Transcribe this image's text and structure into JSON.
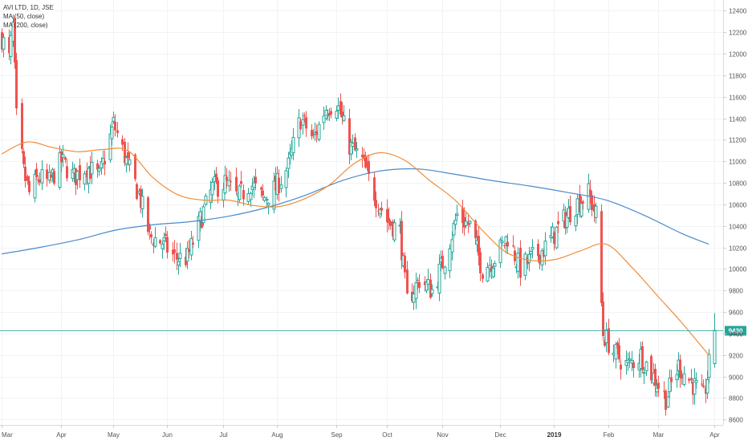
{
  "legend": {
    "title": "AVI LTD, 1D, JSE",
    "ma50": "MA (50, close)",
    "ma200": "MA (200, close)"
  },
  "chart_data": {
    "type": "candlestick",
    "title": "AVI LTD, 1D, JSE",
    "ylim": [
      8550,
      12500
    ],
    "yticks": [
      8600,
      8800,
      9000,
      9200,
      9400,
      9600,
      9800,
      10000,
      10200,
      10400,
      10600,
      10800,
      11000,
      11200,
      11400,
      11600,
      11800,
      12000,
      12200,
      12400
    ],
    "xticks": [
      {
        "label": "Mar",
        "date": "2018-03-01"
      },
      {
        "label": "Apr",
        "date": "2018-04-03"
      },
      {
        "label": "May",
        "date": "2018-05-02"
      },
      {
        "label": "Jun",
        "date": "2018-06-01"
      },
      {
        "label": "Jul",
        "date": "2018-07-02"
      },
      {
        "label": "Aug",
        "date": "2018-08-01"
      },
      {
        "label": "Sep",
        "date": "2018-09-03"
      },
      {
        "label": "Oct",
        "date": "2018-10-01"
      },
      {
        "label": "Nov",
        "date": "2018-11-01"
      },
      {
        "label": "Dec",
        "date": "2018-12-03"
      },
      {
        "label": "2019",
        "date": "2019-01-02",
        "bold": true
      },
      {
        "label": "Feb",
        "date": "2019-02-01"
      },
      {
        "label": "Mar",
        "date": "2019-03-01"
      },
      {
        "label": "Apr",
        "date": "2019-04-01"
      }
    ],
    "current_price": 9430,
    "current_price_label": "9430",
    "colors": {
      "up": "#26a69a",
      "down": "#ef5350",
      "ma50": "#f28c38",
      "ma200": "#4a8ac9",
      "grid": "#f0f3f7",
      "price_tag": "#26a69a"
    },
    "ma50": [
      [
        "2018-03-01",
        11070
      ],
      [
        "2018-03-15",
        11180
      ],
      [
        "2018-03-29",
        11130
      ],
      [
        "2018-04-12",
        11090
      ],
      [
        "2018-04-26",
        11110
      ],
      [
        "2018-05-10",
        11100
      ],
      [
        "2018-05-24",
        10850
      ],
      [
        "2018-06-07",
        10690
      ],
      [
        "2018-06-21",
        10640
      ],
      [
        "2018-07-05",
        10640
      ],
      [
        "2018-07-19",
        10590
      ],
      [
        "2018-08-02",
        10580
      ],
      [
        "2018-08-16",
        10650
      ],
      [
        "2018-08-30",
        10780
      ],
      [
        "2018-09-13",
        10980
      ],
      [
        "2018-09-27",
        11080
      ],
      [
        "2018-10-11",
        11010
      ],
      [
        "2018-10-25",
        10820
      ],
      [
        "2018-11-08",
        10640
      ],
      [
        "2018-11-22",
        10380
      ],
      [
        "2018-12-06",
        10160
      ],
      [
        "2018-12-20",
        10080
      ],
      [
        "2019-01-03",
        10090
      ],
      [
        "2019-01-17",
        10170
      ],
      [
        "2019-01-31",
        10230
      ],
      [
        "2019-02-14",
        10020
      ],
      [
        "2019-02-28",
        9760
      ],
      [
        "2019-03-14",
        9500
      ],
      [
        "2019-03-29",
        9200
      ]
    ],
    "ma200": [
      [
        "2018-03-01",
        10140
      ],
      [
        "2018-03-22",
        10200
      ],
      [
        "2018-04-12",
        10270
      ],
      [
        "2018-05-03",
        10360
      ],
      [
        "2018-05-24",
        10410
      ],
      [
        "2018-06-14",
        10440
      ],
      [
        "2018-07-05",
        10490
      ],
      [
        "2018-07-26",
        10570
      ],
      [
        "2018-08-16",
        10680
      ],
      [
        "2018-09-06",
        10820
      ],
      [
        "2018-09-27",
        10910
      ],
      [
        "2018-10-18",
        10930
      ],
      [
        "2018-11-08",
        10880
      ],
      [
        "2018-11-29",
        10820
      ],
      [
        "2018-12-20",
        10770
      ],
      [
        "2019-01-10",
        10710
      ],
      [
        "2019-01-31",
        10640
      ],
      [
        "2019-02-21",
        10500
      ],
      [
        "2019-03-14",
        10330
      ],
      [
        "2019-03-29",
        10230
      ]
    ],
    "price_path": [
      [
        "2018-03-01",
        12150
      ],
      [
        "2018-03-05",
        11950
      ],
      [
        "2018-03-07",
        12250
      ],
      [
        "2018-03-09",
        11400
      ],
      [
        "2018-03-13",
        10900
      ],
      [
        "2018-03-16",
        10700
      ],
      [
        "2018-03-21",
        10850
      ],
      [
        "2018-03-27",
        10800
      ],
      [
        "2018-04-03",
        11000
      ],
      [
        "2018-04-10",
        10850
      ],
      [
        "2018-04-17",
        10950
      ],
      [
        "2018-04-24",
        10850
      ],
      [
        "2018-05-02",
        11350
      ],
      [
        "2018-05-09",
        11000
      ],
      [
        "2018-05-16",
        10700
      ],
      [
        "2018-05-22",
        10300
      ],
      [
        "2018-05-29",
        10250
      ],
      [
        "2018-06-05",
        10100
      ],
      [
        "2018-06-12",
        10100
      ],
      [
        "2018-06-19",
        10450
      ],
      [
        "2018-06-26",
        10750
      ],
      [
        "2018-07-03",
        10800
      ],
      [
        "2018-07-10",
        10650
      ],
      [
        "2018-07-17",
        10800
      ],
      [
        "2018-07-24",
        10650
      ],
      [
        "2018-07-31",
        10750
      ],
      [
        "2018-08-07",
        10950
      ],
      [
        "2018-08-14",
        11400
      ],
      [
        "2018-08-21",
        11200
      ],
      [
        "2018-08-28",
        11500
      ],
      [
        "2018-09-03",
        11550
      ],
      [
        "2018-09-10",
        11150
      ],
      [
        "2018-09-17",
        11000
      ],
      [
        "2018-09-24",
        10700
      ],
      [
        "2018-10-01",
        10450
      ],
      [
        "2018-10-08",
        10350
      ],
      [
        "2018-10-12",
        9700
      ],
      [
        "2018-10-19",
        9900
      ],
      [
        "2018-10-26",
        9800
      ],
      [
        "2018-11-02",
        10100
      ],
      [
        "2018-11-09",
        10500
      ],
      [
        "2018-11-16",
        10400
      ],
      [
        "2018-11-23",
        10000
      ],
      [
        "2018-11-30",
        10100
      ],
      [
        "2018-12-07",
        10300
      ],
      [
        "2018-12-14",
        10000
      ],
      [
        "2018-12-21",
        10100
      ],
      [
        "2018-12-28",
        10200
      ],
      [
        "2019-01-07",
        10450
      ],
      [
        "2019-01-14",
        10600
      ],
      [
        "2019-01-21",
        10700
      ],
      [
        "2019-01-25",
        10500
      ],
      [
        "2019-01-29",
        9400
      ],
      [
        "2019-02-05",
        9200
      ],
      [
        "2019-02-12",
        9100
      ],
      [
        "2019-02-19",
        9200
      ],
      [
        "2019-02-26",
        9000
      ],
      [
        "2019-03-05",
        8800
      ],
      [
        "2019-03-12",
        9100
      ],
      [
        "2019-03-19",
        8950
      ],
      [
        "2019-03-26",
        8800
      ],
      [
        "2019-03-29",
        9100
      ],
      [
        "2019-04-01",
        9430
      ]
    ]
  }
}
